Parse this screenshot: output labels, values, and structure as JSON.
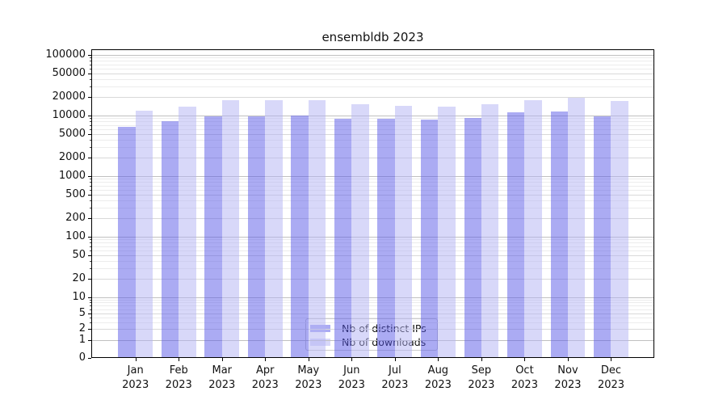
{
  "chart_data": {
    "type": "bar",
    "title": "ensembldb 2023",
    "categories": [
      "Jan",
      "Feb",
      "Mar",
      "Apr",
      "May",
      "Jun",
      "Jul",
      "Aug",
      "Sep",
      "Oct",
      "Nov",
      "Dec"
    ],
    "category_year": "2023",
    "series": [
      {
        "name": "Nb of distinct IPs",
        "color": "#ababf3",
        "fill": "rgba(87,87,231,0.5)",
        "values": [
          6600,
          8100,
          9700,
          9800,
          9900,
          8800,
          8800,
          8700,
          9200,
          11300,
          11800,
          9800
        ]
      },
      {
        "name": "Nb of downloads",
        "color": "#d8d8f9",
        "fill": "rgba(177,177,243,0.5)",
        "values": [
          12200,
          14000,
          18000,
          18100,
          17800,
          15200,
          14600,
          13900,
          15400,
          18100,
          19800,
          17600
        ]
      }
    ],
    "yscale": "symlog",
    "yticks": [
      100000,
      50000,
      20000,
      10000,
      5000,
      2000,
      1000,
      500,
      200,
      100,
      50,
      20,
      10,
      5,
      2,
      1,
      0
    ],
    "ylim": [
      0,
      123000
    ],
    "xlabel": "",
    "ylabel": "",
    "grid": true,
    "legend_position": "lower-center"
  }
}
